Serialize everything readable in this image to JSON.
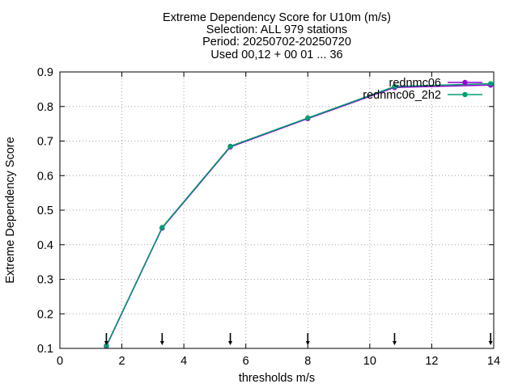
{
  "chart_data": {
    "type": "line",
    "title_lines": [
      "Extreme Dependency Score  for U10m (m/s)",
      "Selection: ALL    979 stations",
      "Period: 20250702-20250720",
      "Used 00,12 + 00 01 ... 36"
    ],
    "xlabel": "thresholds m/s",
    "ylabel": "Extreme Dependency Score",
    "xlim": [
      0,
      14
    ],
    "ylim": [
      0.1,
      0.9
    ],
    "x_ticks": [
      "0",
      "2",
      "4",
      "6",
      "8",
      "10",
      "12",
      "14"
    ],
    "y_ticks": [
      "0.1",
      "0.2",
      "0.3",
      "0.4",
      "0.5",
      "0.6",
      "0.7",
      "0.8",
      "0.9"
    ],
    "grid": true,
    "legend_position": "top-right",
    "series": [
      {
        "name": "rednmc06",
        "color": "#9400d3",
        "x": [
          1.5,
          3.3,
          5.5,
          8.0,
          10.8,
          13.9
        ],
        "y": [
          0.106,
          0.448,
          0.683,
          0.765,
          0.855,
          0.862
        ]
      },
      {
        "name": "rednmc06_2h2",
        "color": "#009e73",
        "x": [
          1.5,
          3.3,
          5.5,
          8.0,
          10.8,
          13.9
        ],
        "y": [
          0.108,
          0.45,
          0.685,
          0.767,
          0.858,
          0.866
        ]
      }
    ],
    "threshold_markers": [
      1.5,
      3.3,
      5.5,
      8.0,
      10.8,
      13.9
    ]
  }
}
